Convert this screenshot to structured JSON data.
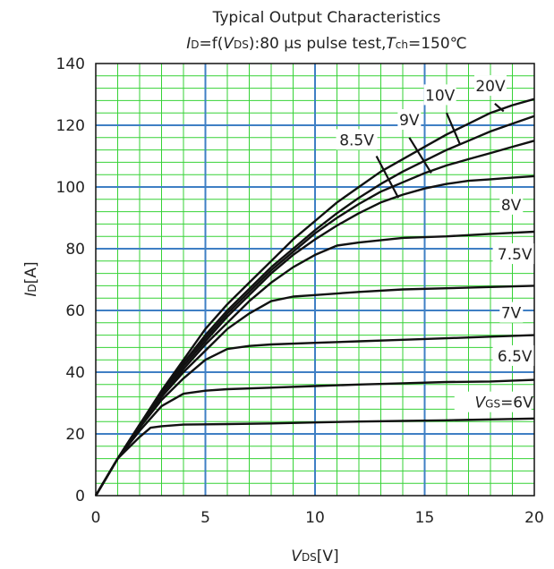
{
  "chart_data": {
    "type": "line",
    "title": "Typical Output Characteristics",
    "subtitle": {
      "prefix_italic": "I",
      "prefix_sub": "D",
      "part1": "=f(",
      "var_italic": "V",
      "var_sub": "DS",
      "part2": "):80 µs pulse test,",
      "temp_italic": "T",
      "temp_sub": "ch",
      "part3": "=150℃"
    },
    "xlabel": {
      "main_italic": "V",
      "sub": "DS",
      "unit": "[V]"
    },
    "ylabel": {
      "main_italic": "I",
      "sub": "D",
      "unit": "[A]"
    },
    "xlim": [
      0,
      20
    ],
    "ylim": [
      0,
      140
    ],
    "x_ticks": [
      "0",
      "5",
      "10",
      "15",
      "20"
    ],
    "y_ticks": [
      "0",
      "20",
      "40",
      "60",
      "80",
      "100",
      "120",
      "140"
    ],
    "grid": true,
    "colors": {
      "major_grid": "#3f7fc4",
      "minor_grid": "#36d236",
      "curve": "#111111"
    },
    "series": [
      {
        "name": "VGS=6V",
        "x": [
          0,
          1,
          2,
          2.5,
          3,
          4,
          5,
          6,
          8,
          10,
          12,
          14,
          16,
          18,
          20
        ],
        "y": [
          0,
          12,
          19,
          22,
          22.5,
          23,
          23.1,
          23.2,
          23.4,
          23.7,
          24,
          24.2,
          24.4,
          24.7,
          25
        ]
      },
      {
        "name": "6.5V",
        "x": [
          0,
          1,
          2,
          3,
          4,
          5,
          6,
          8,
          10,
          12,
          14,
          16,
          18,
          20
        ],
        "y": [
          0,
          12,
          21,
          29,
          33,
          34,
          34.5,
          35,
          35.5,
          36,
          36.4,
          36.8,
          37,
          37.5
        ]
      },
      {
        "name": "7V",
        "x": [
          0,
          1,
          2,
          3,
          4,
          5,
          6,
          7,
          8,
          10,
          12,
          14,
          16,
          18,
          20
        ],
        "y": [
          0,
          12,
          22,
          31,
          38,
          44,
          47.5,
          48.5,
          49,
          49.5,
          50,
          50.5,
          51,
          51.5,
          52
        ]
      },
      {
        "name": "7.5V",
        "x": [
          0,
          1,
          2,
          3,
          4,
          5,
          6,
          7,
          8,
          9,
          10,
          12,
          14,
          16,
          18,
          20
        ],
        "y": [
          0,
          12,
          22,
          32,
          40,
          47,
          54,
          59,
          63,
          64.5,
          65,
          66,
          66.8,
          67.2,
          67.6,
          68
        ]
      },
      {
        "name": "8V",
        "x": [
          0,
          1,
          2,
          3,
          4,
          5,
          6,
          7,
          8,
          9,
          10,
          11,
          12,
          14,
          16,
          18,
          20
        ],
        "y": [
          0,
          12,
          22,
          32,
          41,
          49,
          56,
          63,
          69,
          74,
          78,
          81,
          82,
          83.5,
          84,
          84.8,
          85.5
        ]
      },
      {
        "name": "8.5V",
        "x": [
          0,
          1,
          2,
          3,
          4,
          5,
          6,
          7,
          8,
          9,
          10,
          11,
          12,
          13,
          14,
          15,
          16,
          17,
          18,
          19,
          20
        ],
        "y": [
          0,
          12,
          23,
          33,
          42,
          50,
          58,
          65,
          72,
          78,
          83,
          87.5,
          91.5,
          95,
          97.5,
          99.5,
          101,
          102,
          102.5,
          103,
          103.5
        ]
      },
      {
        "name": "9V",
        "x": [
          0,
          1,
          2,
          3,
          4,
          5,
          6,
          7,
          8,
          9,
          10,
          11,
          12,
          13,
          14,
          15,
          16,
          17,
          18,
          19,
          20
        ],
        "y": [
          0,
          12,
          23,
          33,
          43,
          51,
          59,
          66,
          73,
          79,
          85,
          90,
          94.5,
          98.5,
          101.5,
          104.5,
          107,
          109,
          111,
          113,
          115
        ]
      },
      {
        "name": "10V",
        "x": [
          0,
          1,
          2,
          3,
          4,
          5,
          6,
          7,
          8,
          9,
          10,
          11,
          12,
          13,
          14,
          15,
          16,
          17,
          18,
          19,
          20
        ],
        "y": [
          0,
          12,
          23,
          33,
          43,
          52,
          60,
          67,
          74,
          80,
          86,
          91.5,
          96.5,
          101,
          105,
          108.5,
          112,
          115,
          118,
          120.5,
          123
        ]
      },
      {
        "name": "20V",
        "x": [
          0,
          1,
          2,
          3,
          4,
          5,
          6,
          7,
          8,
          9,
          10,
          11,
          12,
          13,
          14,
          15,
          16,
          17,
          18,
          19,
          20
        ],
        "y": [
          0,
          12,
          23,
          34,
          44,
          54,
          62,
          69,
          76,
          83,
          89,
          95,
          100,
          105,
          109,
          113,
          117,
          120.5,
          124,
          126.5,
          128.5
        ]
      }
    ],
    "annotations": {
      "vgs_label": {
        "italic": "V",
        "sub": "GS",
        "rest": "=6V"
      },
      "labels": [
        {
          "text": "6.5V",
          "series": "6.5V"
        },
        {
          "text": "7V",
          "series": "7V"
        },
        {
          "text": "7.5V",
          "series": "7.5V"
        },
        {
          "text": "8V",
          "series": "8V"
        },
        {
          "text": "8.5V",
          "series": "8.5V"
        },
        {
          "text": "9V",
          "series": "9V"
        },
        {
          "text": "10V",
          "series": "10V"
        },
        {
          "text": "20V",
          "series": "20V"
        }
      ]
    }
  }
}
